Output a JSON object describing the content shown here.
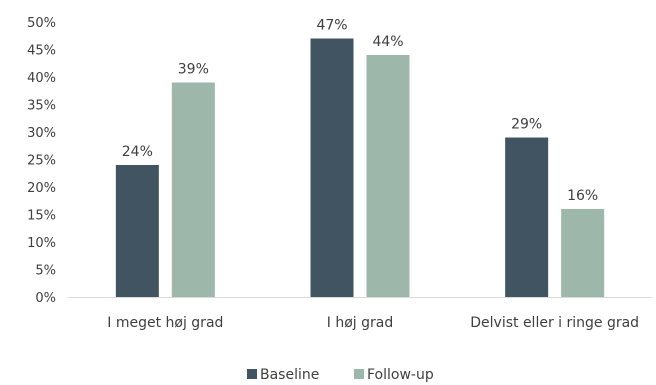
{
  "chart_data": {
    "type": "bar",
    "categories": [
      "I meget høj grad",
      "I høj grad",
      "Delvist eller i ringe grad"
    ],
    "series": [
      {
        "name": "Baseline",
        "values": [
          24,
          47,
          29
        ],
        "labels": [
          "24%",
          "47%",
          "29%"
        ],
        "color": "#405462"
      },
      {
        "name": "Follow-up",
        "values": [
          39,
          44,
          16
        ],
        "labels": [
          "39%",
          "44%",
          "16%"
        ],
        "color": "#9db8ab"
      }
    ],
    "ylim": [
      0,
      50
    ],
    "yticks": [
      "0%",
      "5%",
      "10%",
      "15%",
      "20%",
      "25%",
      "30%",
      "35%",
      "40%",
      "45%",
      "50%"
    ],
    "grid": false,
    "legend": "bottom"
  }
}
